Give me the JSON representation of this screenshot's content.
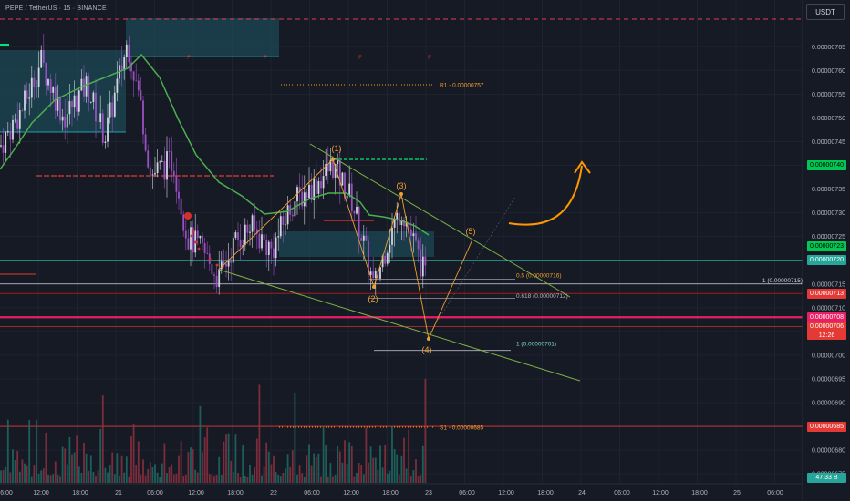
{
  "header": {
    "title": "PEPE / TetherUS · 15 · BINANCE",
    "currency": "USDT"
  },
  "chart_data": {
    "type": "candlestick",
    "symbol": "PEPE / TetherUS",
    "interval": "15",
    "exchange": "BINANCE",
    "y_axis": {
      "min": 6.7e-06,
      "max": 7.7e-06,
      "ticks": [
        "0.00000765",
        "0.00000760",
        "0.00000755",
        "0.00000750",
        "0.00000745",
        "0.00000740",
        "0.00000735",
        "0.00000730",
        "0.00000725",
        "0.00000720",
        "0.00000715",
        "0.00000710",
        "0.00000705",
        "0.00000700",
        "0.00000695",
        "0.00000690",
        "0.00000685",
        "0.00000680",
        "0.00000675"
      ]
    },
    "x_axis": {
      "ticks": [
        "6:00",
        "12:00",
        "18:00",
        "21",
        "06:00",
        "12:00",
        "18:00",
        "22",
        "06:00",
        "12:00",
        "18:00",
        "23",
        "06:00",
        "12:00",
        "18:00",
        "24",
        "06:00",
        "12:00",
        "18:00",
        "25",
        "06:00"
      ]
    },
    "price_labels": [
      {
        "value": "0.00000740",
        "color": "#00c853",
        "text_color": "#000000"
      },
      {
        "value": "0.00000723",
        "color": "#00c853",
        "text_color": "#000000"
      },
      {
        "value": "0.00000720",
        "color": "#26a69a",
        "text_color": "#ffffff"
      },
      {
        "value": "0.00000713",
        "color": "#e53935",
        "text_color": "#ffffff"
      },
      {
        "value": "0.00000708",
        "color": "#e91e63",
        "text_color": "#ffffff"
      },
      {
        "value": "0.00000706",
        "color": "#e53935",
        "text_color": "#ffffff",
        "sub": "12:26"
      },
      {
        "value": "0.00000685",
        "color": "#e53935",
        "text_color": "#ffffff"
      },
      {
        "value": "47.33 B",
        "color": "#26a69a",
        "text_color": "#ffffff"
      }
    ],
    "annotations": {
      "r1": "R1 - 0.00000757",
      "s1": "S1 - 0.00000685",
      "fib_05": "0.5 (0.00000716)",
      "fib_0618": "0.618 (0.00000712)",
      "fib_1a": "1 (0.00000715)",
      "fib_1b": "1 (0.00000701)",
      "wave_labels": [
        "(1)",
        "(2)",
        "(3)",
        "(4)",
        "(5)"
      ],
      "flag": "F"
    },
    "waves": [
      {
        "label": "(1)",
        "value": 7.4e-06
      },
      {
        "label": "(2)",
        "value": 7.12e-06
      },
      {
        "label": "(3)",
        "value": 7.31e-06
      },
      {
        "label": "(4)",
        "value": 7.01e-06
      },
      {
        "label": "(5)",
        "value": 7.23e-06
      }
    ]
  }
}
